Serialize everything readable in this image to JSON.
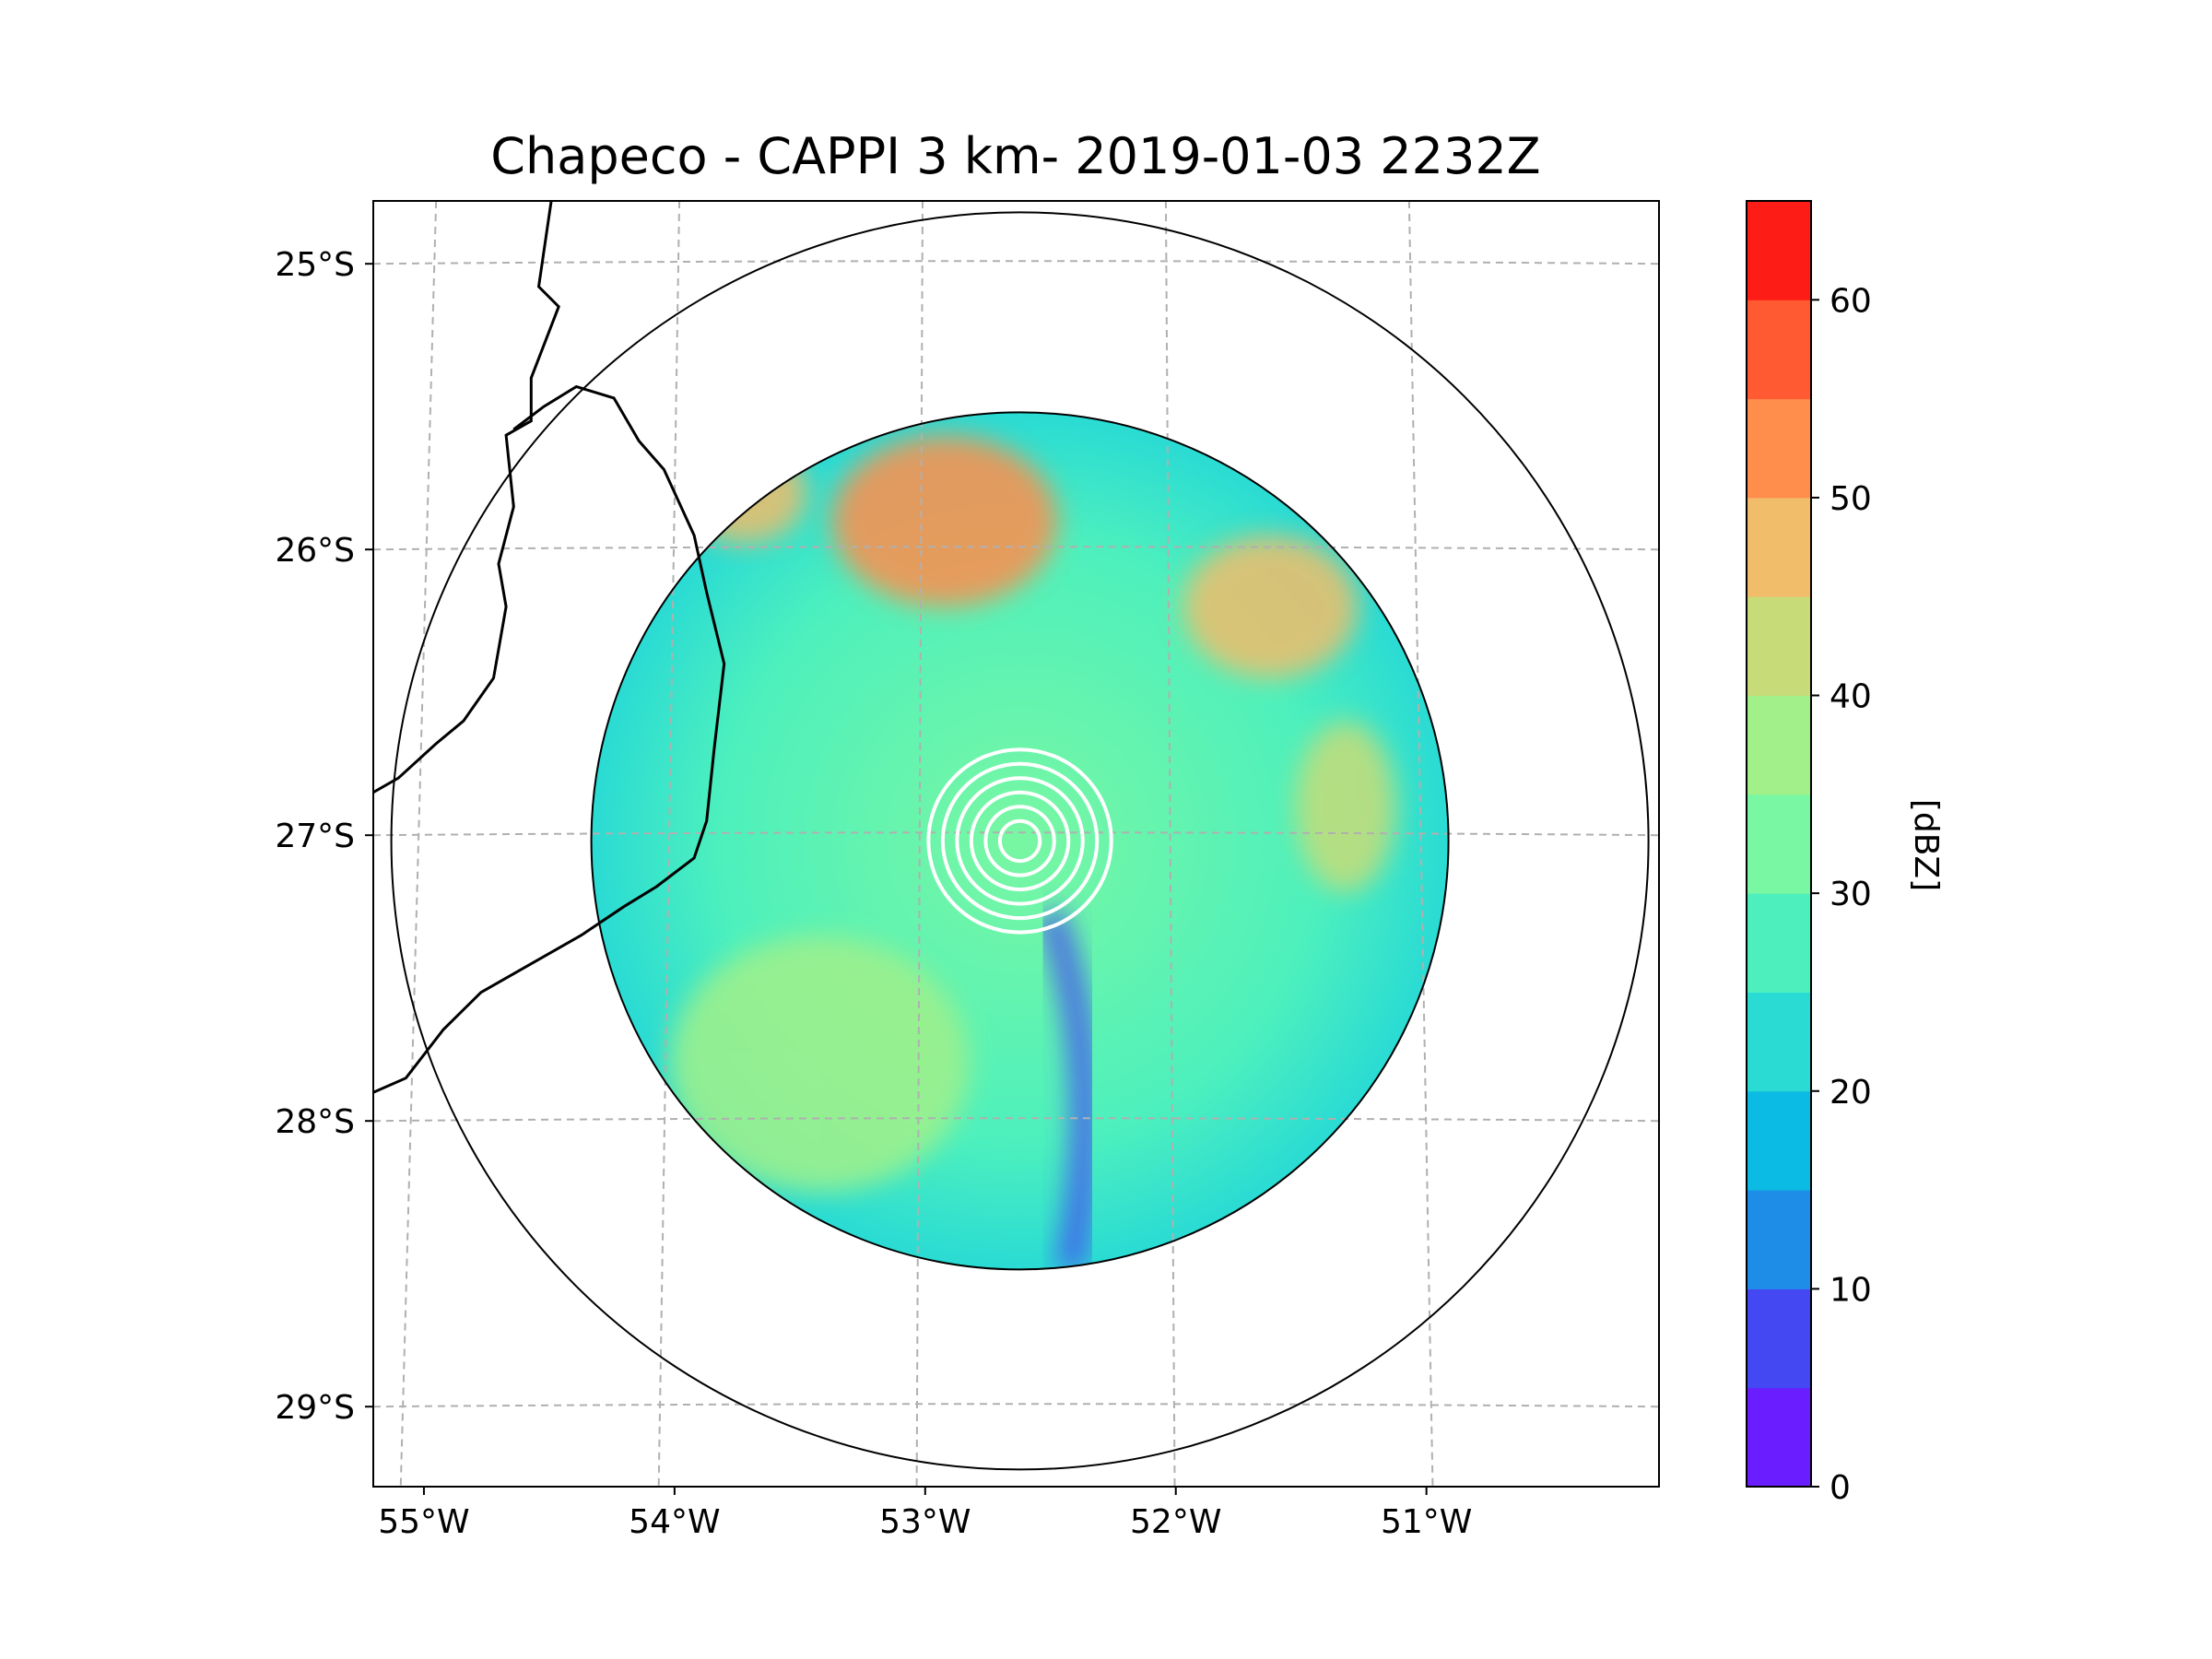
{
  "title": "Chapeco - CAPPI 3 km- 2019-01-03 2232Z",
  "map": {
    "lon_range": [
      -55.18,
      -50.05
    ],
    "lat_range": [
      -29.28,
      -24.78
    ],
    "lat_ticks": [
      {
        "value": -25,
        "label": "25°S"
      },
      {
        "value": -26,
        "label": "26°S"
      },
      {
        "value": -27,
        "label": "27°S"
      },
      {
        "value": -28,
        "label": "28°S"
      },
      {
        "value": -29,
        "label": "29°S"
      }
    ],
    "lon_ticks": [
      {
        "value": -55,
        "label": "55°W"
      },
      {
        "value": -54,
        "label": "54°W"
      },
      {
        "value": -53,
        "label": "53°W"
      },
      {
        "value": -52,
        "label": "52°W"
      },
      {
        "value": -51,
        "label": "51°W"
      }
    ],
    "radar_site": {
      "name": "Chapeco",
      "lon": -52.6,
      "lat": -27.02
    },
    "data_radius_deg": 1.5,
    "outer_range_radius_deg": 2.2,
    "near_range_ring_radii_deg": [
      0.07,
      0.12,
      0.17,
      0.22,
      0.27,
      0.32
    ]
  },
  "colorbar": {
    "label": "[dBZ]",
    "min": 0,
    "max": 65,
    "levels": [
      0,
      5,
      10,
      15,
      20,
      25,
      30,
      35,
      40,
      45,
      50,
      55,
      60,
      65
    ],
    "colors": [
      "#6a1dff",
      "#4448f2",
      "#1e8de8",
      "#0cbbe3",
      "#2adbd4",
      "#4df0bd",
      "#79f7a2",
      "#a1f08a",
      "#c7dc78",
      "#f1bd6a",
      "#ff8e4d",
      "#ff5a32",
      "#fe1d16"
    ],
    "ticks": [
      {
        "value": 0,
        "label": "0"
      },
      {
        "value": 10,
        "label": "10"
      },
      {
        "value": 20,
        "label": "20"
      },
      {
        "value": 30,
        "label": "30"
      },
      {
        "value": 40,
        "label": "40"
      },
      {
        "value": 50,
        "label": "50"
      },
      {
        "value": 60,
        "label": "60"
      }
    ]
  },
  "features": {
    "borders": [
      [
        [
          -54.47,
          -24.78
        ],
        [
          -54.52,
          -25.08
        ],
        [
          -54.44,
          -25.15
        ],
        [
          -54.55,
          -25.4
        ],
        [
          -54.55,
          -25.55
        ],
        [
          -54.65,
          -25.6
        ],
        [
          -54.62,
          -25.85
        ],
        [
          -54.68,
          -26.05
        ],
        [
          -54.65,
          -26.2
        ],
        [
          -54.7,
          -26.45
        ],
        [
          -54.82,
          -26.6
        ],
        [
          -54.93,
          -26.68
        ],
        [
          -55.08,
          -26.8
        ],
        [
          -55.18,
          -26.85
        ]
      ],
      [
        [
          -54.62,
          -25.58
        ],
        [
          -54.5,
          -25.5
        ],
        [
          -54.37,
          -25.43
        ],
        [
          -54.22,
          -25.47
        ],
        [
          -54.12,
          -25.62
        ],
        [
          -54.02,
          -25.72
        ],
        [
          -53.9,
          -25.95
        ],
        [
          -53.85,
          -26.15
        ],
        [
          -53.78,
          -26.4
        ],
        [
          -53.82,
          -26.7
        ],
        [
          -53.85,
          -26.95
        ],
        [
          -53.9,
          -27.08
        ],
        [
          -54.05,
          -27.18
        ],
        [
          -54.18,
          -27.25
        ],
        [
          -54.35,
          -27.35
        ],
        [
          -54.55,
          -27.45
        ],
        [
          -54.75,
          -27.55
        ],
        [
          -54.9,
          -27.68
        ],
        [
          -55.05,
          -27.85
        ],
        [
          -55.18,
          -27.9
        ]
      ]
    ],
    "storm_echoes": [
      {
        "name": "northern-ne-band",
        "lon": -52.9,
        "lat": -25.9,
        "rx": 0.45,
        "ry": 0.3,
        "dbz": 52
      },
      {
        "name": "northwest-band",
        "lon": -53.7,
        "lat": -25.8,
        "rx": 0.25,
        "ry": 0.18,
        "dbz": 48
      },
      {
        "name": "northeast-band",
        "lon": -51.6,
        "lat": -26.2,
        "rx": 0.35,
        "ry": 0.25,
        "dbz": 46
      },
      {
        "name": "east-cell",
        "lon": -51.3,
        "lat": -26.9,
        "rx": 0.2,
        "ry": 0.3,
        "dbz": 44
      },
      {
        "name": "southwest-plain",
        "lon": -53.4,
        "lat": -27.8,
        "rx": 0.6,
        "ry": 0.45,
        "dbz": 38
      }
    ]
  }
}
